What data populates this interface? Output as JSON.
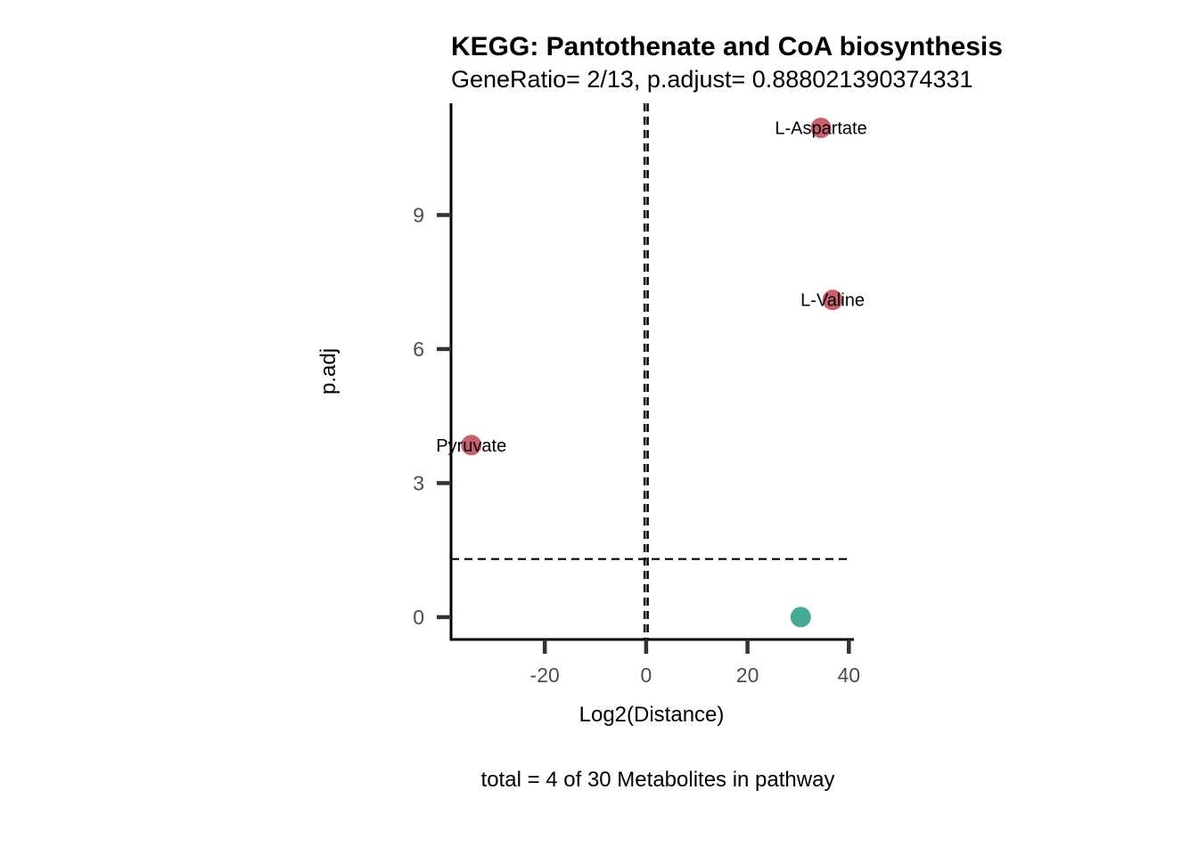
{
  "chart_data": {
    "type": "scatter",
    "title": "KEGG: Pantothenate and CoA biosynthesis",
    "subtitle": "GeneRatio= 2/13, p.adjust= 0.888021390374331",
    "xlabel": "Log2(Distance)",
    "ylabel": "p.adj",
    "caption": "total = 4 of 30 Metabolites in pathway",
    "xlim": [
      -38.5,
      41
    ],
    "ylim": [
      -0.5,
      11.5
    ],
    "x_ticks": [
      -20,
      0,
      20,
      40
    ],
    "x_tick_labels": [
      "-20",
      "0",
      "20",
      "40"
    ],
    "y_ticks": [
      0,
      3,
      6,
      9
    ],
    "y_tick_labels": [
      "0",
      "3",
      "6",
      "9"
    ],
    "grid": false,
    "legend": "none",
    "reference_lines": {
      "vertical": [
        -0.3,
        0.3
      ],
      "horizontal": [
        1.3
      ]
    },
    "points": [
      {
        "label": "L-Aspartate",
        "x": 34.5,
        "y": 10.95,
        "color": "#c8606e"
      },
      {
        "label": "L-Valine",
        "x": 36.8,
        "y": 7.1,
        "color": "#c8606e"
      },
      {
        "label": "Pyruvate",
        "x": -34.5,
        "y": 3.85,
        "color": "#c8606e"
      },
      {
        "label": "",
        "x": 30.5,
        "y": 0.0,
        "color": "#45a996"
      }
    ]
  }
}
